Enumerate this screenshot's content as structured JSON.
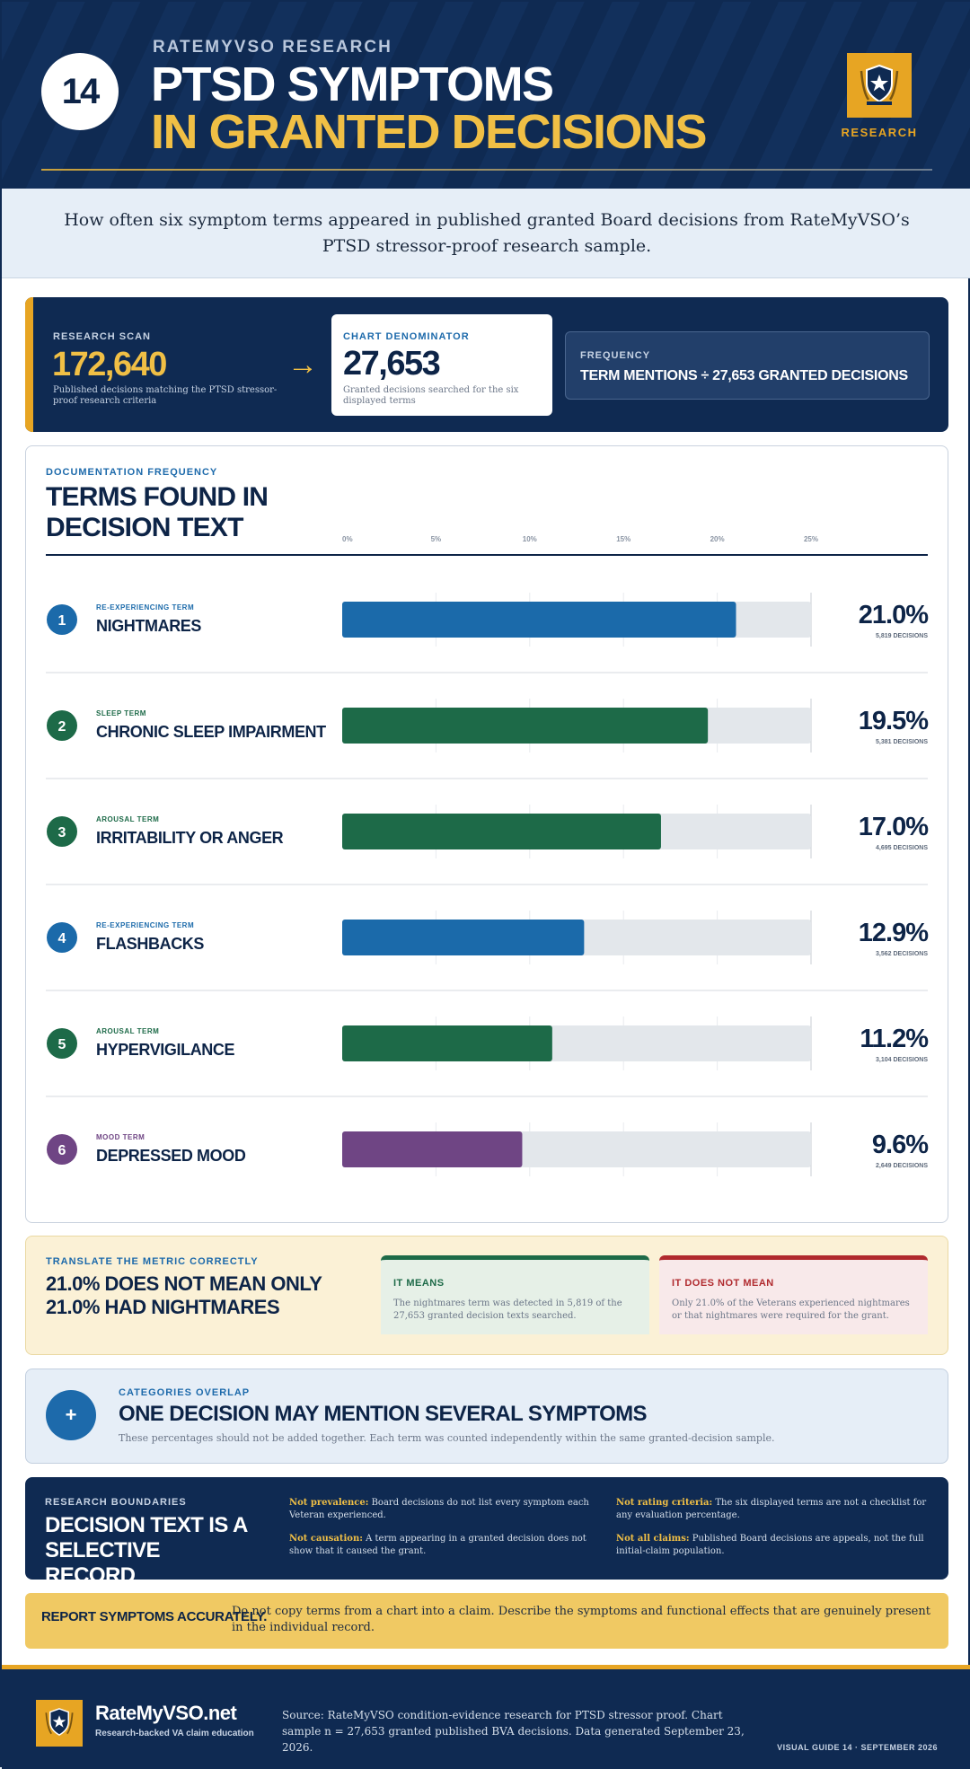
{
  "header": {
    "issue_number": "14",
    "eyebrow": "RATEMYVSO RESEARCH",
    "title_line1": "PTSD SYMPTOMS",
    "title_line2": "IN GRANTED DECISIONS",
    "badge_label": "RESEARCH",
    "badge_icon": "shield-star-icon"
  },
  "intro": "How often six symptom terms appeared in published granted Board decisions from RateMyVSO’s PTSD stressor-proof research sample.",
  "scan": {
    "label": "RESEARCH SCAN",
    "value": "172,640",
    "description": "Published decisions matching the PTSD stressor-proof research criteria",
    "arrow": "→",
    "denominator_label": "CHART DENOMINATOR",
    "denominator_value": "27,653",
    "denominator_description": "Granted decisions searched for the six displayed terms",
    "frequency_label": "FREQUENCY",
    "frequency_text": "TERM MENTIONS ÷ 27,653 GRANTED DECISIONS"
  },
  "chart_section": {
    "eyebrow": "DOCUMENTATION FREQUENCY",
    "title": "TERMS FOUND IN DECISION TEXT"
  },
  "chart_data": {
    "type": "bar",
    "orientation": "horizontal",
    "x_ticks": [
      "0%",
      "5%",
      "10%",
      "15%",
      "20%",
      "25%"
    ],
    "xlim": [
      0,
      25
    ],
    "grid": true,
    "colors": {
      "re-experiencing": "#1b6aaa",
      "sleep": "#1d6a48",
      "arousal": "#1d6a48",
      "mood": "#6f4584",
      "track": "#e3e7eb"
    },
    "rows": [
      {
        "rank": "1",
        "category": "RE-EXPERIENCING TERM",
        "group": "re-experiencing",
        "label": "NIGHTMARES",
        "value": 21.0,
        "value_label": "21.0%",
        "count_label": "5,819 DECISIONS"
      },
      {
        "rank": "2",
        "category": "SLEEP TERM",
        "group": "sleep",
        "label": "CHRONIC SLEEP IMPAIRMENT",
        "value": 19.5,
        "value_label": "19.5%",
        "count_label": "5,381 DECISIONS"
      },
      {
        "rank": "3",
        "category": "AROUSAL TERM",
        "group": "arousal",
        "label": "IRRITABILITY OR ANGER",
        "value": 17.0,
        "value_label": "17.0%",
        "count_label": "4,695 DECISIONS"
      },
      {
        "rank": "4",
        "category": "RE-EXPERIENCING TERM",
        "group": "re-experiencing",
        "label": "FLASHBACKS",
        "value": 12.9,
        "value_label": "12.9%",
        "count_label": "3,562 DECISIONS"
      },
      {
        "rank": "5",
        "category": "AROUSAL TERM",
        "group": "arousal",
        "label": "HYPERVIGILANCE",
        "value": 11.2,
        "value_label": "11.2%",
        "count_label": "3,104 DECISIONS"
      },
      {
        "rank": "6",
        "category": "MOOD TERM",
        "group": "mood",
        "label": "DEPRESSED MOOD",
        "value": 9.6,
        "value_label": "9.6%",
        "count_label": "2,649 DECISIONS"
      }
    ]
  },
  "translate": {
    "label": "TRANSLATE THE METRIC CORRECTLY",
    "title": "21.0% DOES NOT MEAN ONLY 21.0% HAD NIGHTMARES",
    "means_heading": "IT MEANS",
    "means_text": "The nightmares term was detected in 5,819 of the 27,653 granted decision texts searched.",
    "not_means_heading": "IT DOES NOT MEAN",
    "not_means_text": "Only 21.0% of the Veterans experienced nightmares or that nightmares were required for the grant."
  },
  "overlap": {
    "icon": "plus-icon",
    "symbol": "+",
    "label": "CATEGORIES OVERLAP",
    "title": "ONE DECISION MAY MENTION SEVERAL SYMPTOMS",
    "description": "These percentages should not be added together. Each term was counted independently within the same granted-decision sample."
  },
  "boundaries": {
    "label": "RESEARCH BOUNDARIES",
    "title": "DECISION TEXT IS A SELECTIVE RECORD",
    "items": [
      {
        "term": "Not prevalence:",
        "text": " Board decisions do not list every symptom each Veteran experienced."
      },
      {
        "term": "Not rating criteria:",
        "text": " The six displayed terms are not a checklist for any evaluation percentage."
      },
      {
        "term": "Not causation:",
        "text": " A term appearing in a granted decision does not show that it caused the grant."
      },
      {
        "term": "Not all claims:",
        "text": " Published Board decisions are appeals, not the full initial-claim population."
      }
    ]
  },
  "report": {
    "label": "REPORT SYMPTOMS ACCURATELY.",
    "text": "Do not copy terms from a chart into a claim. Describe the symptoms and functional effects that are genuinely present in the individual record."
  },
  "footer": {
    "brand": "RateMyVSO.net",
    "tagline": "Research-backed VA claim education",
    "source": "Source: RateMyVSO condition-evidence research for PTSD stressor proof. Chart sample n = 27,653 granted published BVA decisions. Data generated September 23, 2026.",
    "guide": "VISUAL GUIDE 14 · SEPTEMBER 2026",
    "logo_icon": "shield-star-icon"
  }
}
